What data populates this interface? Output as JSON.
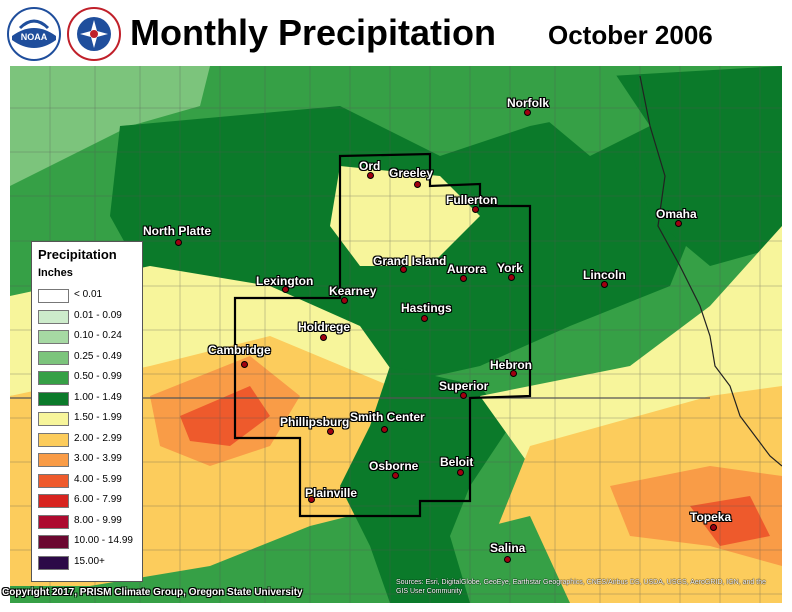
{
  "title": "Monthly Precipitation",
  "period": "October 2006",
  "logos": {
    "noaa": "noaa-logo",
    "nws": "nws-logo"
  },
  "legend": {
    "title": "Precipitation",
    "units": "Inches",
    "classes": [
      {
        "label": "< 0.01",
        "color": "#ffffff"
      },
      {
        "label": "0.01 - 0.09",
        "color": "#cdeccb"
      },
      {
        "label": "0.10 - 0.24",
        "color": "#a6d9a3"
      },
      {
        "label": "0.25 - 0.49",
        "color": "#7cc47c"
      },
      {
        "label": "0.50 - 0.99",
        "color": "#36a046"
      },
      {
        "label": "1.00 - 1.49",
        "color": "#0b7a2a"
      },
      {
        "label": "1.50 - 1.99",
        "color": "#f7f59b"
      },
      {
        "label": "2.00 - 2.99",
        "color": "#fccc5c"
      },
      {
        "label": "3.00 - 3.99",
        "color": "#f99c47"
      },
      {
        "label": "4.00 - 5.99",
        "color": "#ee5a2c"
      },
      {
        "label": "6.00 - 7.99",
        "color": "#d7241f"
      },
      {
        "label": "8.00 - 9.99",
        "color": "#ad0a2f"
      },
      {
        "label": "10.00 - 14.99",
        "color": "#6b0830"
      },
      {
        "label": "15.00+",
        "color": "#2c0a47"
      }
    ]
  },
  "cities": [
    {
      "name": "Norfolk"
    },
    {
      "name": "Ord"
    },
    {
      "name": "Greeley"
    },
    {
      "name": "Fullerton"
    },
    {
      "name": "North Platte"
    },
    {
      "name": "Omaha"
    },
    {
      "name": "Grand Island"
    },
    {
      "name": "Aurora"
    },
    {
      "name": "York"
    },
    {
      "name": "Lexington"
    },
    {
      "name": "Lincoln"
    },
    {
      "name": "Kearney"
    },
    {
      "name": "Hastings"
    },
    {
      "name": "Holdrege"
    },
    {
      "name": "Cambridge"
    },
    {
      "name": "Hebron"
    },
    {
      "name": "Superior"
    },
    {
      "name": "Phillipsburg"
    },
    {
      "name": "Smith Center"
    },
    {
      "name": "Osborne"
    },
    {
      "name": "Beloit"
    },
    {
      "name": "Plainville"
    },
    {
      "name": "Topeka"
    },
    {
      "name": "Salina"
    }
  ],
  "copyright": "Copyright 2017, PRISM Climate Group, Oregon State University",
  "credits": "Sources: Esri, DigitalGlobe, GeoEye, Earthstar Geographics, CNES/Airbus DS, USDA, USGS, AeroGRID, IGN, and the GIS User Community"
}
